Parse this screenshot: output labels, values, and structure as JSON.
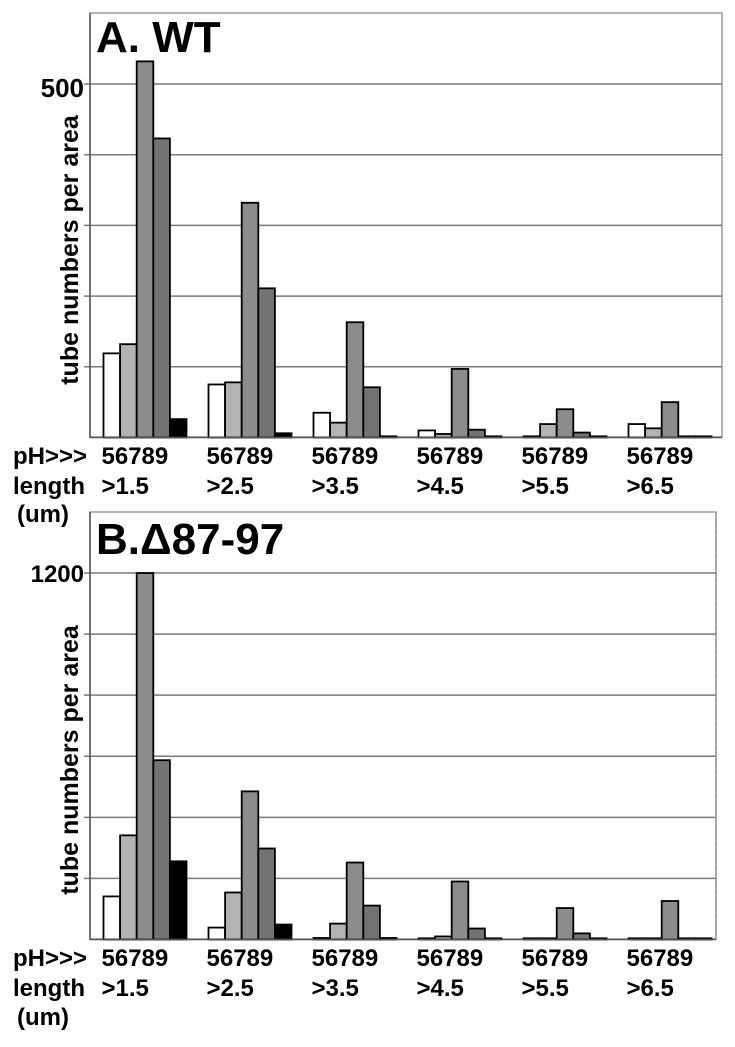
{
  "figure": {
    "panels_label": "Tube length distribution by pH"
  },
  "colors": {
    "pH5": "#ffffff",
    "pH6": "#b3b3b3",
    "pH7": "#8c8c8c",
    "pH8": "#737373",
    "pH9": "#000000",
    "gridline": "#7a7a7a",
    "frame": "#9a9a9a"
  },
  "axis_labels": {
    "ph_row_label": "pH>>>",
    "ph_tick_group": "56789",
    "length_row_label": "length",
    "length_unit_label": "(um)"
  },
  "chart_data": [
    {
      "type": "bar",
      "title": "A. WT",
      "xlabel": "pH / length (um)",
      "ylabel": "tube numbers per area",
      "ylim": [
        0,
        500
      ],
      "y_tick_step": 100,
      "y_tick_labels_shown": [
        "500"
      ],
      "grid": true,
      "categories": [
        ">1.5",
        ">2.5",
        ">3.5",
        ">4.5",
        ">5.5",
        ">6.5"
      ],
      "series": [
        {
          "name": "pH 5",
          "values": [
            119,
            75,
            35,
            10,
            1,
            19
          ]
        },
        {
          "name": "pH 6",
          "values": [
            132,
            78,
            21,
            5,
            19,
            13
          ]
        },
        {
          "name": "pH 7",
          "values": [
            532,
            332,
            163,
            97,
            40,
            50
          ]
        },
        {
          "name": "pH 8",
          "values": [
            423,
            211,
            71,
            11,
            7,
            0
          ]
        },
        {
          "name": "pH 9",
          "values": [
            26,
            6,
            0,
            0,
            0,
            0
          ]
        }
      ]
    },
    {
      "type": "bar",
      "title": "B.Δ87-97",
      "xlabel": "pH / length (um)",
      "ylabel": "tube numbers per area",
      "ylim": [
        0,
        1200
      ],
      "y_tick_step": 200,
      "y_tick_labels_shown": [
        "1200"
      ],
      "grid": true,
      "categories": [
        ">1.5",
        ">2.5",
        ">3.5",
        ">4.5",
        ">5.5",
        ">6.5"
      ],
      "series": [
        {
          "name": "pH 5",
          "values": [
            141,
            39,
            5,
            0,
            0,
            0
          ]
        },
        {
          "name": "pH 6",
          "values": [
            341,
            154,
            52,
            10,
            3,
            3
          ]
        },
        {
          "name": "pH 7",
          "values": [
            1200,
            485,
            252,
            190,
            103,
            126
          ]
        },
        {
          "name": "pH 8",
          "values": [
            587,
            298,
            111,
            36,
            20,
            3
          ]
        },
        {
          "name": "pH 9",
          "values": [
            256,
            49,
            5,
            0,
            0,
            0
          ]
        }
      ]
    }
  ]
}
